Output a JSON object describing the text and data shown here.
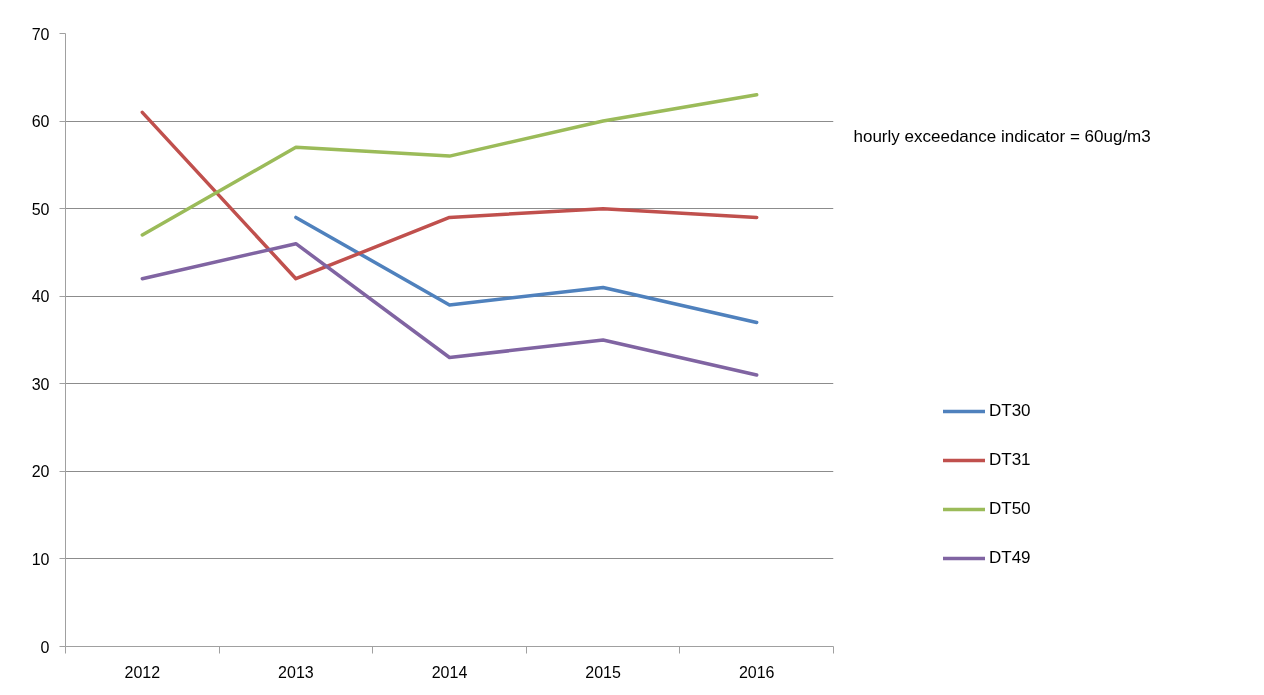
{
  "chart_data": {
    "type": "line",
    "categories": [
      "2012",
      "2013",
      "2014",
      "2015",
      "2016"
    ],
    "series": [
      {
        "name": "DT30",
        "color": "#4f81bd",
        "values": [
          null,
          49,
          39,
          41,
          37
        ]
      },
      {
        "name": "DT31",
        "color": "#c0504d",
        "values": [
          61,
          42,
          49,
          50,
          49
        ]
      },
      {
        "name": "DT50",
        "color": "#9bbb59",
        "values": [
          47,
          57,
          56,
          60,
          63
        ]
      },
      {
        "name": "DT49",
        "color": "#8064a2",
        "values": [
          42,
          46,
          33,
          35,
          31
        ]
      }
    ],
    "ylim": [
      0,
      70
    ],
    "yticks": [
      0,
      10,
      20,
      30,
      40,
      50,
      60,
      70
    ],
    "grid": "y",
    "legend": "right",
    "marker": "none",
    "line_style": "solid",
    "annotations": [
      "hourly exceedance indicator = 60ug/m3"
    ]
  }
}
